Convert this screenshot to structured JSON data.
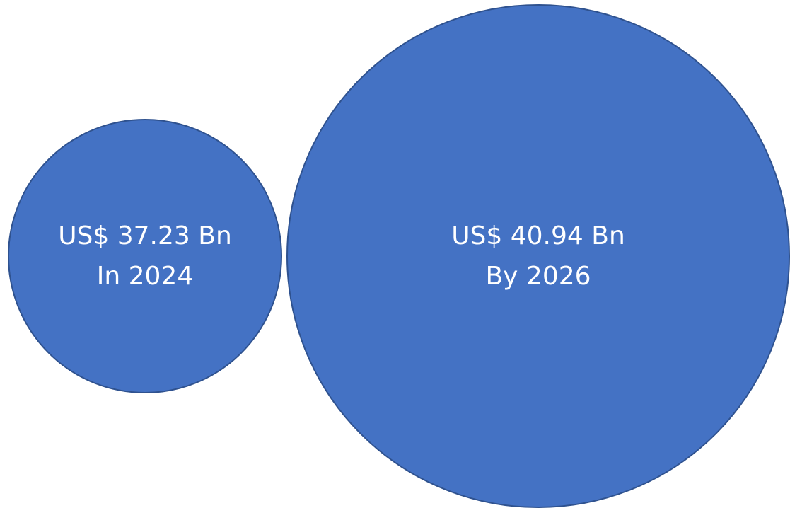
{
  "colors": {
    "bubble_fill": "#4472C4",
    "bubble_stroke": "#2F528F",
    "label_text": "#FFFFFF",
    "background": "#FFFFFF"
  },
  "chart_data": {
    "type": "bubble",
    "title": "",
    "xlabel": "",
    "ylabel": "",
    "legend": "none",
    "grid": false,
    "units": "US$ Bn",
    "series": [
      {
        "label": "2024",
        "value": 37.23,
        "value_text": "US$ 37.23 Bn",
        "period_text": "In 2024"
      },
      {
        "label": "2026",
        "value": 40.94,
        "value_text": "US$ 40.94 Bn",
        "period_text": "By 2026"
      }
    ]
  }
}
